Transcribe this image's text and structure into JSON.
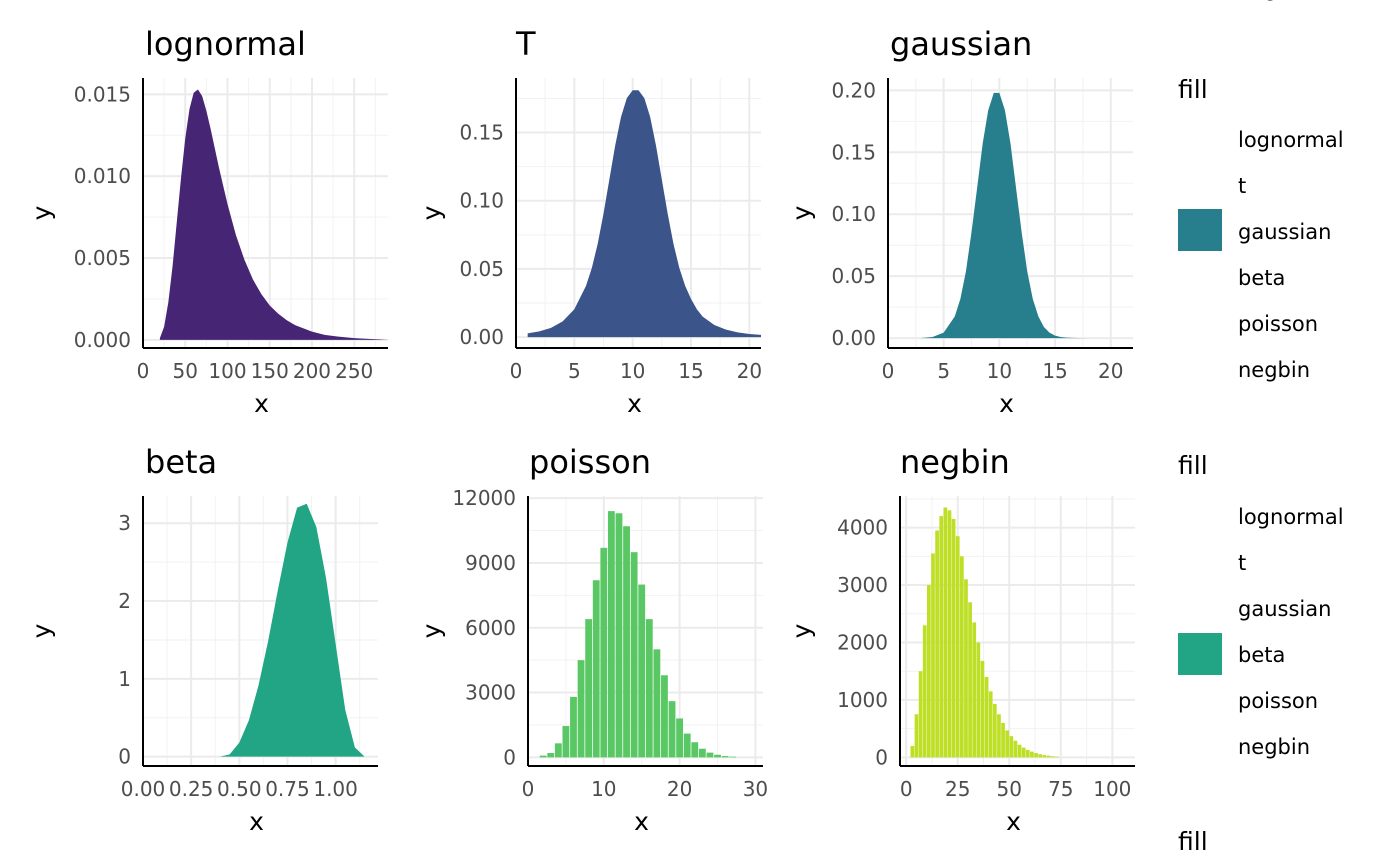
{
  "chart_data": [
    {
      "type": "area",
      "title": "lognormal",
      "xlabel": "x",
      "ylabel": "y",
      "fill": "#472575",
      "xlim": [
        0,
        290
      ],
      "ylim": [
        -0.0005,
        0.016
      ],
      "x_ticks": [
        0,
        50,
        100,
        150,
        200,
        250
      ],
      "x_tick_labels": [
        "0",
        "50",
        "100",
        "150",
        "200",
        "250"
      ],
      "y_ticks": [
        0,
        0.005,
        0.01,
        0.015
      ],
      "y_tick_labels": [
        "0.000",
        "0.005",
        "0.010",
        "0.015"
      ],
      "x": [
        20,
        25,
        30,
        35,
        40,
        45,
        50,
        55,
        60,
        65,
        70,
        75,
        80,
        90,
        100,
        110,
        120,
        130,
        140,
        150,
        160,
        170,
        180,
        190,
        200,
        215,
        230,
        250,
        270,
        290
      ],
      "y": [
        0.0001,
        0.0008,
        0.0023,
        0.0045,
        0.0072,
        0.0099,
        0.0123,
        0.0141,
        0.0151,
        0.0153,
        0.0149,
        0.014,
        0.0129,
        0.0105,
        0.0083,
        0.0064,
        0.0049,
        0.0037,
        0.0028,
        0.0021,
        0.0016,
        0.0012,
        0.0009,
        0.0007,
        0.0005,
        0.0003,
        0.0002,
        0.0001,
        5e-05,
        0.0
      ]
    },
    {
      "type": "area",
      "title": "T",
      "xlabel": "x",
      "ylabel": "y",
      "fill": "#3b5489",
      "xlim": [
        0,
        21
      ],
      "ylim": [
        -0.008,
        0.19
      ],
      "x_ticks": [
        0,
        5,
        10,
        15,
        20
      ],
      "x_tick_labels": [
        "0",
        "5",
        "10",
        "15",
        "20"
      ],
      "y_ticks": [
        0,
        0.05,
        0.1,
        0.15
      ],
      "y_tick_labels": [
        "0.00",
        "0.05",
        "0.10",
        "0.15"
      ],
      "x": [
        1,
        2,
        3,
        4,
        5,
        6,
        6.5,
        7,
        7.5,
        8,
        8.5,
        9,
        9.5,
        10,
        10.5,
        11,
        11.5,
        12,
        12.5,
        13,
        13.5,
        14,
        14.5,
        15,
        15.5,
        16,
        17,
        18,
        19,
        20,
        21
      ],
      "y": [
        0.0027,
        0.0042,
        0.0068,
        0.0115,
        0.0204,
        0.0376,
        0.0507,
        0.0683,
        0.0905,
        0.1155,
        0.1404,
        0.1614,
        0.1752,
        0.181,
        0.181,
        0.1752,
        0.1614,
        0.1404,
        0.1155,
        0.0905,
        0.0683,
        0.0507,
        0.0376,
        0.028,
        0.0204,
        0.015,
        0.0089,
        0.0055,
        0.0035,
        0.0023,
        0.0016
      ]
    },
    {
      "type": "area",
      "title": "gaussian",
      "xlabel": "x",
      "ylabel": "y",
      "fill": "#277f8e",
      "xlim": [
        0,
        22
      ],
      "ylim": [
        -0.008,
        0.21
      ],
      "x_ticks": [
        0,
        5,
        10,
        15,
        20
      ],
      "x_tick_labels": [
        "0",
        "5",
        "10",
        "15",
        "20"
      ],
      "y_ticks": [
        0,
        0.05,
        0.1,
        0.15,
        0.2
      ],
      "y_tick_labels": [
        "0.00",
        "0.05",
        "0.10",
        "0.15",
        "0.20"
      ],
      "x": [
        3,
        4,
        5,
        6,
        6.5,
        7,
        7.5,
        8,
        8.5,
        9,
        9.5,
        10,
        10.5,
        11,
        11.5,
        12,
        12.5,
        13,
        13.5,
        14,
        14.5,
        15,
        15.5,
        16,
        17,
        18,
        19
      ],
      "y": [
        0.0001,
        0.0009,
        0.0044,
        0.0175,
        0.0317,
        0.054,
        0.0856,
        0.121,
        0.157,
        0.184,
        0.198,
        0.198,
        0.184,
        0.157,
        0.121,
        0.0856,
        0.054,
        0.0317,
        0.0175,
        0.009,
        0.0044,
        0.002,
        0.0009,
        0.0004,
        0.0001,
        0.0,
        0.0
      ]
    },
    {
      "type": "area",
      "title": "beta",
      "xlabel": "x",
      "ylabel": "y",
      "fill": "#21a585",
      "xlim": [
        0,
        1.22
      ],
      "ylim": [
        -0.12,
        3.35
      ],
      "x_ticks": [
        0,
        0.25,
        0.5,
        0.75,
        1.0
      ],
      "x_tick_labels": [
        "0.00",
        "0.25",
        "0.50",
        "0.75",
        "1.00"
      ],
      "y_ticks": [
        0,
        1,
        2,
        3
      ],
      "y_tick_labels": [
        "0",
        "1",
        "2",
        "3"
      ],
      "x": [
        0.4,
        0.45,
        0.5,
        0.55,
        0.6,
        0.65,
        0.7,
        0.75,
        0.8,
        0.85,
        0.9,
        0.95,
        1.0,
        1.05,
        1.1,
        1.15
      ],
      "y": [
        0.0,
        0.03,
        0.18,
        0.47,
        0.92,
        1.49,
        2.14,
        2.75,
        3.2,
        3.25,
        2.95,
        2.3,
        1.45,
        0.6,
        0.12,
        0.0
      ]
    },
    {
      "type": "bar",
      "title": "poisson",
      "xlabel": "x",
      "ylabel": "y",
      "fill": "#59c864",
      "xlim": [
        0,
        31
      ],
      "ylim": [
        -400,
        12100
      ],
      "x_ticks": [
        0,
        10,
        20,
        30
      ],
      "x_tick_labels": [
        "0",
        "10",
        "20",
        "30"
      ],
      "y_ticks": [
        0,
        3000,
        6000,
        9000,
        12000
      ],
      "y_tick_labels": [
        "0",
        "3000",
        "6000",
        "9000",
        "12000"
      ],
      "x": [
        2,
        3,
        4,
        5,
        6,
        7,
        8,
        9,
        10,
        11,
        12,
        13,
        14,
        15,
        16,
        17,
        18,
        19,
        20,
        21,
        22,
        23,
        24,
        25,
        26,
        27
      ],
      "y": [
        80,
        200,
        650,
        1450,
        2800,
        4500,
        6400,
        8200,
        9700,
        11400,
        11300,
        10700,
        9500,
        8000,
        6400,
        5000,
        3800,
        2600,
        1800,
        1100,
        700,
        400,
        220,
        120,
        60,
        30
      ]
    },
    {
      "type": "bar",
      "title": "negbin",
      "xlabel": "x",
      "ylabel": "y",
      "fill": "#bddf26",
      "xlim": [
        -3,
        111
      ],
      "ylim": [
        -150,
        4550
      ],
      "x_ticks": [
        0,
        25,
        50,
        75,
        100
      ],
      "x_tick_labels": [
        "0",
        "25",
        "50",
        "75",
        "100"
      ],
      "y_ticks": [
        0,
        1000,
        2000,
        3000,
        4000
      ],
      "y_tick_labels": [
        "0",
        "1000",
        "2000",
        "3000",
        "4000"
      ],
      "x": [
        3,
        5,
        7,
        9,
        11,
        13,
        15,
        17,
        19,
        21,
        23,
        25,
        27,
        29,
        31,
        33,
        35,
        37,
        39,
        41,
        43,
        45,
        47,
        49,
        51,
        53,
        55,
        57,
        59,
        61,
        63,
        65,
        67,
        69,
        71,
        73
      ],
      "y": [
        200,
        750,
        1500,
        2300,
        3000,
        3550,
        3950,
        4200,
        4350,
        4300,
        4150,
        3850,
        3500,
        3100,
        2700,
        2350,
        2000,
        1680,
        1400,
        1150,
        930,
        750,
        600,
        470,
        370,
        290,
        220,
        170,
        130,
        100,
        75,
        55,
        40,
        30,
        20,
        12
      ]
    }
  ],
  "legends": [
    {
      "title": "fill",
      "labels": [
        "lognormal",
        "t",
        "gaussian",
        "beta",
        "poisson",
        "negbin"
      ],
      "key_color": "#277f8e",
      "key_index": 2
    },
    {
      "title": "fill",
      "labels": [
        "lognormal",
        "t",
        "gaussian",
        "beta",
        "poisson",
        "negbin"
      ],
      "key_color": "#21a585",
      "key_index": 3
    }
  ],
  "partial_legend": {
    "top_label": "negbin",
    "bottom_title": "fill"
  }
}
